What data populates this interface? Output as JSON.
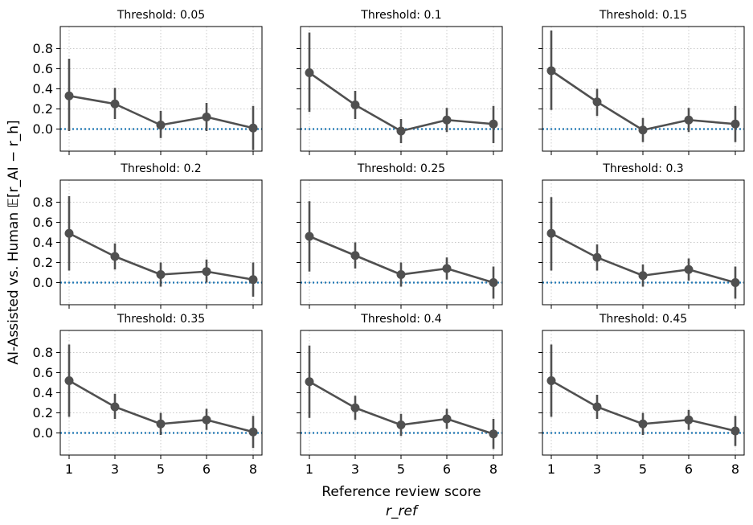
{
  "chart_data": {
    "type": "line",
    "layout": "3x3 grid",
    "xlabel": "Reference review score",
    "xlabel_sub": "r_ref",
    "ylabel": "AI-Assisted vs. Human 𝔼[r_AI − r_h]",
    "categories": [
      "1",
      "3",
      "5",
      "6",
      "8"
    ],
    "yticks": [
      0.0,
      0.2,
      0.4,
      0.6,
      0.8
    ],
    "ylim": [
      -0.22,
      1.02
    ],
    "grid": true,
    "reference_line": 0.0,
    "colors": {
      "series": "#505050",
      "reference": "#1f77b4"
    },
    "panels": [
      {
        "title": "Threshold: 0.05",
        "values": [
          0.33,
          0.25,
          0.04,
          0.12,
          0.01
        ],
        "err_low": [
          -0.02,
          0.1,
          -0.09,
          -0.02,
          -0.21
        ],
        "err_high": [
          0.7,
          0.41,
          0.18,
          0.26,
          0.23
        ]
      },
      {
        "title": "Threshold: 0.1",
        "values": [
          0.56,
          0.24,
          -0.02,
          0.09,
          0.05
        ],
        "err_low": [
          0.17,
          0.1,
          -0.14,
          -0.03,
          -0.14
        ],
        "err_high": [
          0.96,
          0.38,
          0.1,
          0.21,
          0.23
        ]
      },
      {
        "title": "Threshold: 0.15",
        "values": [
          0.58,
          0.27,
          -0.01,
          0.09,
          0.05
        ],
        "err_low": [
          0.19,
          0.13,
          -0.13,
          -0.03,
          -0.13
        ],
        "err_high": [
          0.98,
          0.4,
          0.11,
          0.21,
          0.23
        ]
      },
      {
        "title": "Threshold: 0.2",
        "values": [
          0.49,
          0.26,
          0.08,
          0.11,
          0.03
        ],
        "err_low": [
          0.12,
          0.13,
          -0.04,
          0.0,
          -0.14
        ],
        "err_high": [
          0.86,
          0.39,
          0.2,
          0.23,
          0.2
        ]
      },
      {
        "title": "Threshold: 0.25",
        "values": [
          0.46,
          0.27,
          0.08,
          0.14,
          0.0
        ],
        "err_low": [
          0.11,
          0.14,
          -0.04,
          0.03,
          -0.16
        ],
        "err_high": [
          0.81,
          0.4,
          0.2,
          0.25,
          0.16
        ]
      },
      {
        "title": "Threshold: 0.3",
        "values": [
          0.49,
          0.25,
          0.07,
          0.13,
          0.0
        ],
        "err_low": [
          0.12,
          0.12,
          -0.04,
          0.02,
          -0.16
        ],
        "err_high": [
          0.85,
          0.38,
          0.18,
          0.24,
          0.16
        ]
      },
      {
        "title": "Threshold: 0.35",
        "values": [
          0.52,
          0.26,
          0.09,
          0.13,
          0.01
        ],
        "err_low": [
          0.16,
          0.14,
          -0.02,
          0.03,
          -0.15
        ],
        "err_high": [
          0.88,
          0.39,
          0.2,
          0.24,
          0.17
        ]
      },
      {
        "title": "Threshold: 0.4",
        "values": [
          0.51,
          0.25,
          0.08,
          0.14,
          -0.01
        ],
        "err_low": [
          0.15,
          0.13,
          -0.03,
          0.04,
          -0.16
        ],
        "err_high": [
          0.87,
          0.37,
          0.19,
          0.24,
          0.14
        ]
      },
      {
        "title": "Threshold: 0.45",
        "values": [
          0.52,
          0.26,
          0.09,
          0.13,
          0.02
        ],
        "err_low": [
          0.16,
          0.14,
          -0.02,
          0.03,
          -0.13
        ],
        "err_high": [
          0.88,
          0.38,
          0.2,
          0.23,
          0.17
        ]
      }
    ]
  }
}
